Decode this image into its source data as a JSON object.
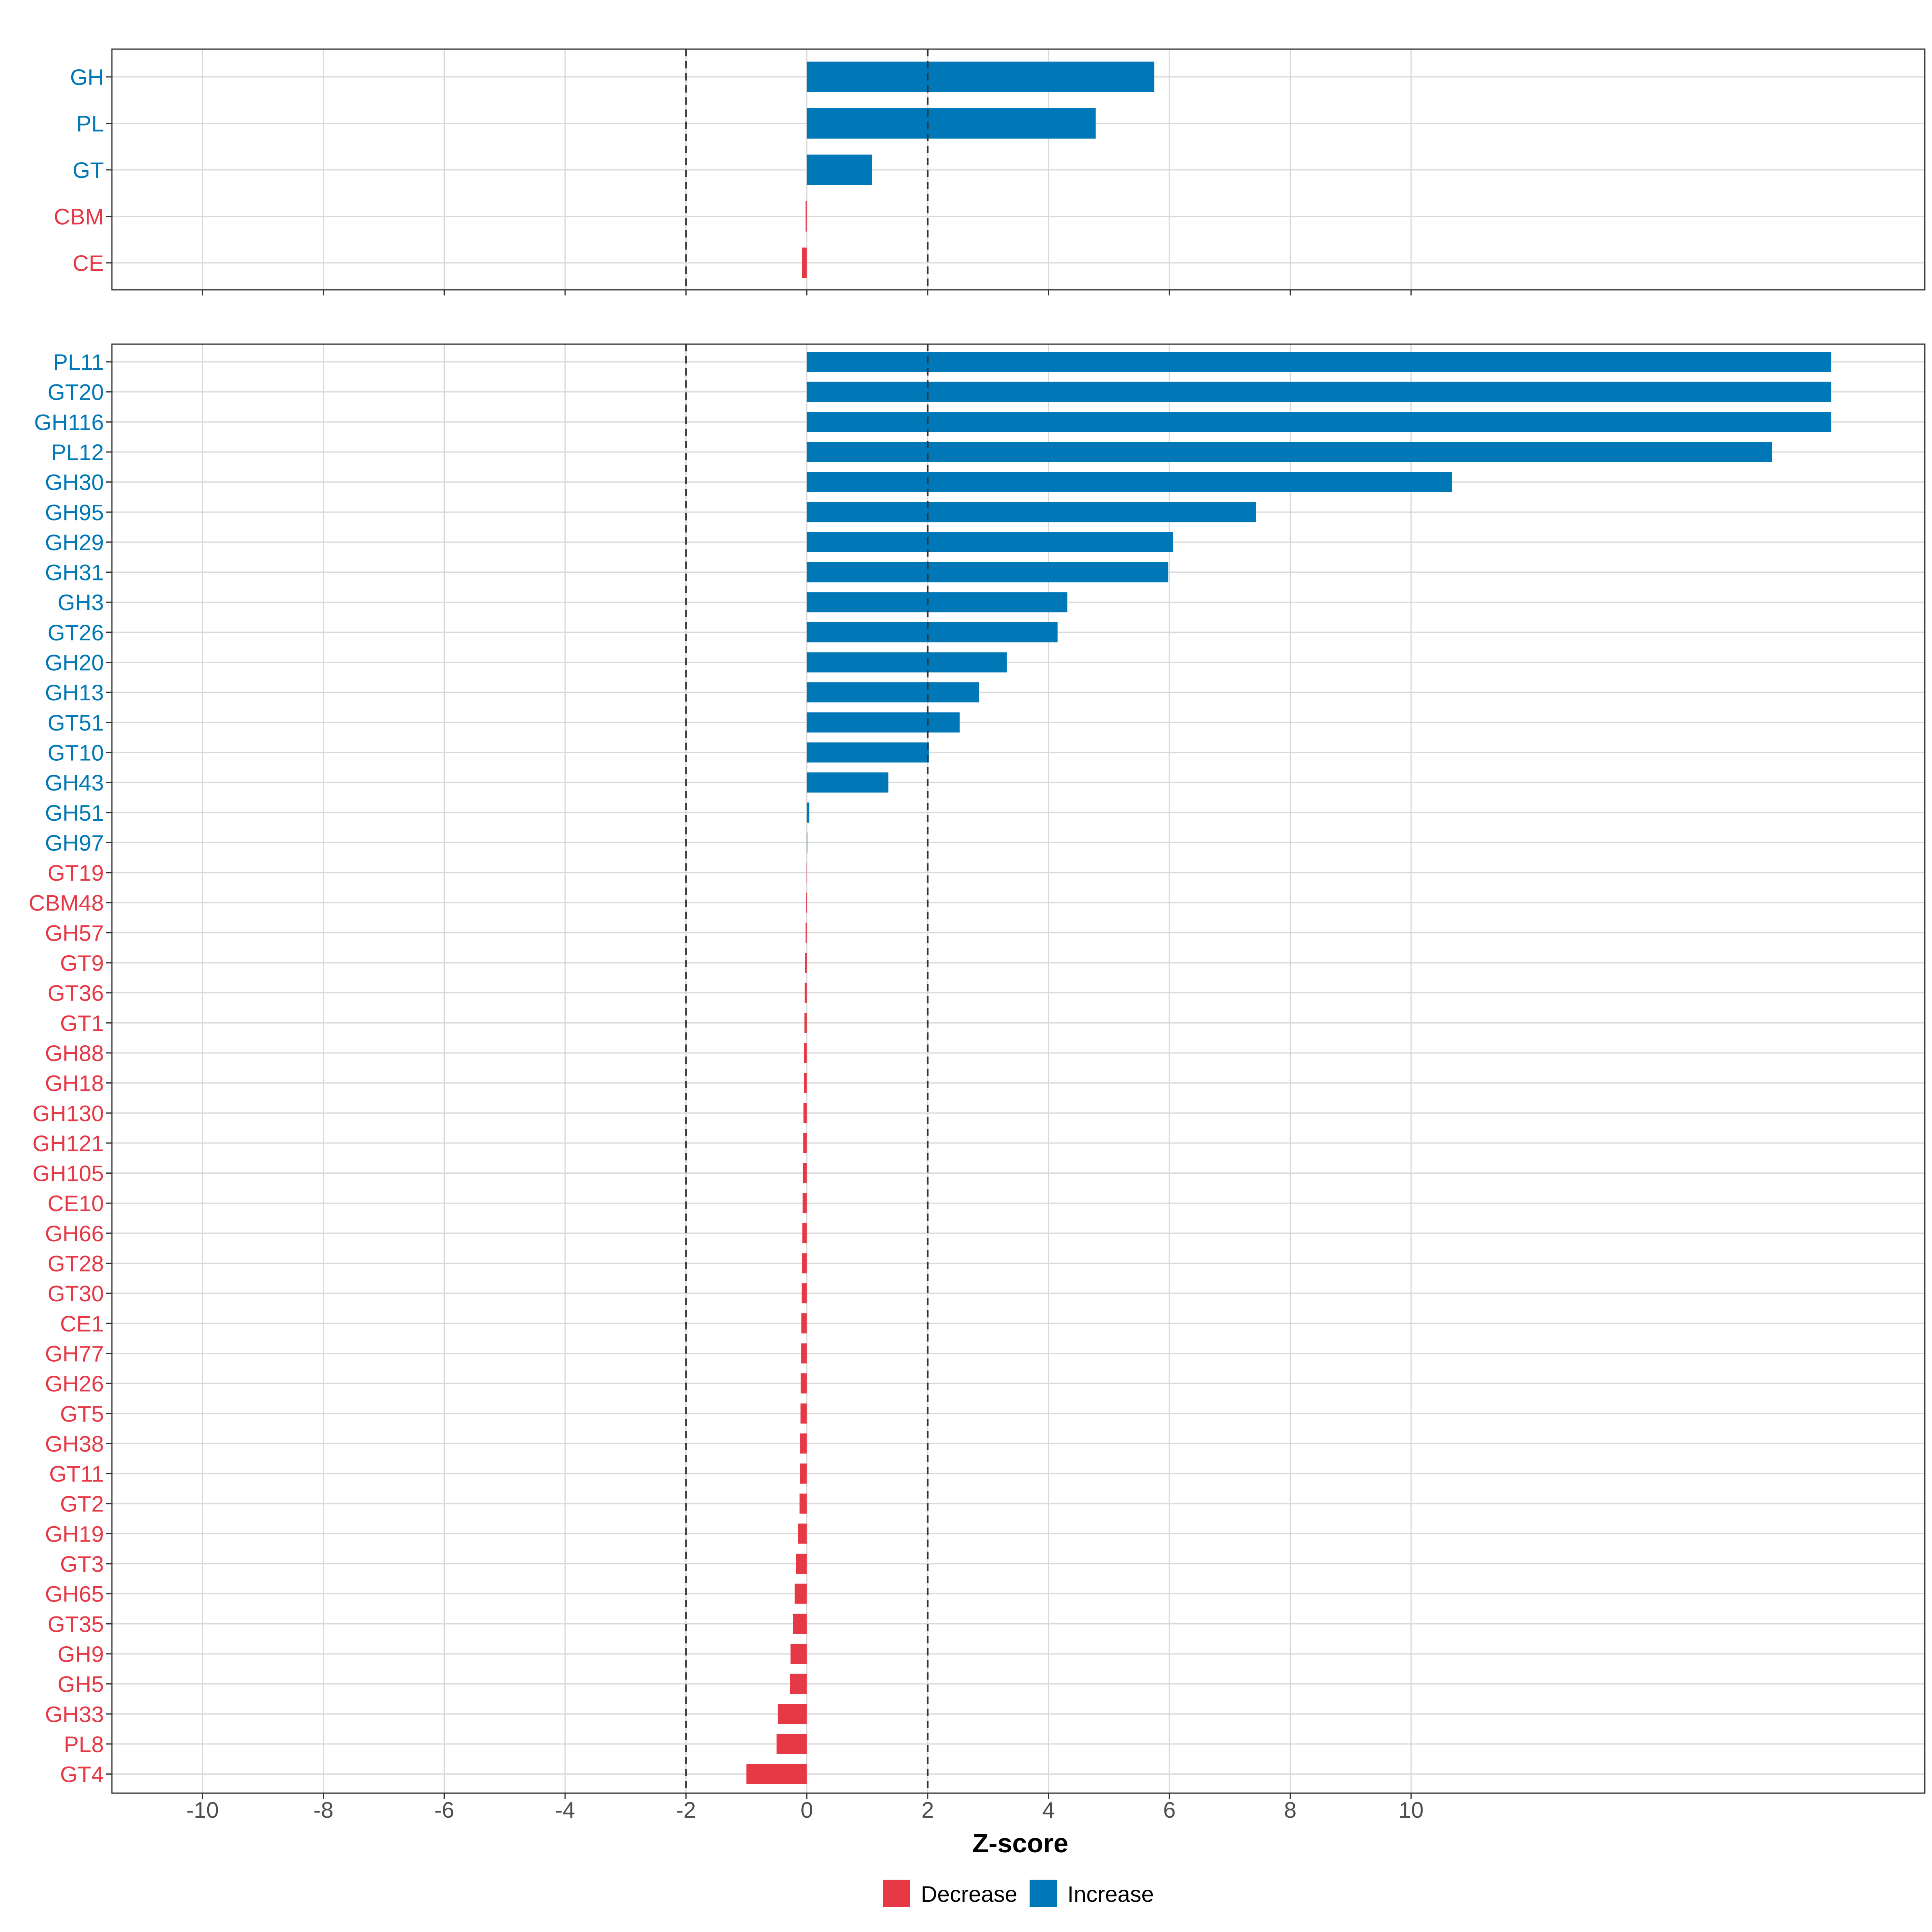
{
  "colors": {
    "increase": "#0077B6",
    "decrease": "#E63946",
    "grid": "#d9d9d9",
    "panel_border": "#333333",
    "threshold_line": "#333333"
  },
  "chart_data": {
    "type": "bar",
    "orientation": "horizontal",
    "xlabel": "Z-score",
    "xlim": [
      -11.5,
      18.5
    ],
    "xticks": [
      -10,
      -8,
      -6,
      -4,
      -2,
      0,
      2,
      4,
      6,
      8,
      10
    ],
    "threshold_lines": [
      -2,
      2
    ],
    "grid": true,
    "legend_position": "bottom",
    "legend": [
      {
        "label": "Decrease",
        "color_key": "decrease"
      },
      {
        "label": "Increase",
        "color_key": "increase"
      }
    ],
    "panels": [
      {
        "name": "class",
        "categories": [
          "GH",
          "PL",
          "GT",
          "CBM",
          "CE"
        ],
        "values": [
          5.75,
          4.78,
          1.08,
          -0.02,
          -0.08
        ],
        "direction": [
          "Increase",
          "Increase",
          "Increase",
          "Decrease",
          "Decrease"
        ]
      },
      {
        "name": "family",
        "categories": [
          "PL11",
          "GT20",
          "GH116",
          "PL12",
          "GH30",
          "GH95",
          "GH29",
          "GH31",
          "GH3",
          "GT26",
          "GH20",
          "GH13",
          "GT51",
          "GT10",
          "GH43",
          "GH51",
          "GH97",
          "GT19",
          "CBM48",
          "GH57",
          "GT9",
          "GT36",
          "GT1",
          "GH88",
          "GH18",
          "GH130",
          "GH121",
          "GH105",
          "CE10",
          "GH66",
          "GT28",
          "GT30",
          "CE1",
          "GH77",
          "GH26",
          "GT5",
          "GH38",
          "GT11",
          "GT2",
          "GH19",
          "GT3",
          "GH65",
          "GT35",
          "GH9",
          "GH5",
          "GH33",
          "PL8",
          "GT4"
        ],
        "values": [
          16.95,
          16.95,
          16.95,
          15.97,
          10.68,
          7.43,
          6.06,
          5.98,
          4.31,
          4.15,
          3.31,
          2.85,
          2.53,
          2.02,
          1.35,
          0.04,
          0.01,
          -0.005,
          -0.01,
          -0.02,
          -0.03,
          -0.035,
          -0.04,
          -0.045,
          -0.05,
          -0.055,
          -0.06,
          -0.065,
          -0.07,
          -0.075,
          -0.08,
          -0.085,
          -0.09,
          -0.095,
          -0.1,
          -0.105,
          -0.11,
          -0.115,
          -0.12,
          -0.15,
          -0.18,
          -0.2,
          -0.23,
          -0.27,
          -0.28,
          -0.48,
          -0.5,
          -1.0
        ],
        "direction": [
          "Increase",
          "Increase",
          "Increase",
          "Increase",
          "Increase",
          "Increase",
          "Increase",
          "Increase",
          "Increase",
          "Increase",
          "Increase",
          "Increase",
          "Increase",
          "Increase",
          "Increase",
          "Increase",
          "Increase",
          "Decrease",
          "Decrease",
          "Decrease",
          "Decrease",
          "Decrease",
          "Decrease",
          "Decrease",
          "Decrease",
          "Decrease",
          "Decrease",
          "Decrease",
          "Decrease",
          "Decrease",
          "Decrease",
          "Decrease",
          "Decrease",
          "Decrease",
          "Decrease",
          "Decrease",
          "Decrease",
          "Decrease",
          "Decrease",
          "Decrease",
          "Decrease",
          "Decrease",
          "Decrease",
          "Decrease",
          "Decrease",
          "Decrease",
          "Decrease",
          "Decrease"
        ]
      }
    ]
  }
}
